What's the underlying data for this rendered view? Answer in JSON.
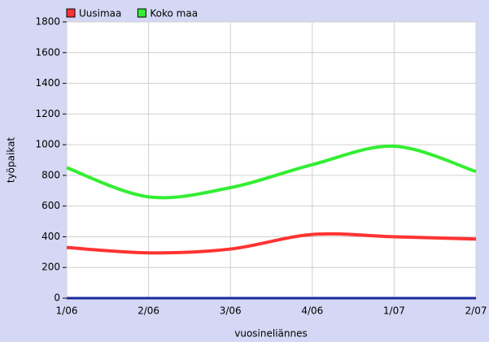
{
  "chart_data": {
    "type": "line",
    "x_label": "vuosineliännes",
    "y_label": "työpaikat",
    "categories": [
      "1/06",
      "2/06",
      "3/06",
      "4/06",
      "1/07",
      "2/07"
    ],
    "series": [
      {
        "name": "Uusimaa",
        "color": "#ff3333",
        "values": [
          330,
          295,
          320,
          415,
          400,
          385
        ]
      },
      {
        "name": "Koko maa",
        "color": "#33ee33",
        "values": [
          850,
          660,
          720,
          870,
          990,
          825
        ]
      }
    ],
    "ylim": [
      0,
      1800
    ],
    "yticks": [
      0,
      200,
      400,
      600,
      800,
      1000,
      1200,
      1400,
      1600,
      1800
    ],
    "grid": true,
    "legend": "top-left",
    "smooth": true
  }
}
